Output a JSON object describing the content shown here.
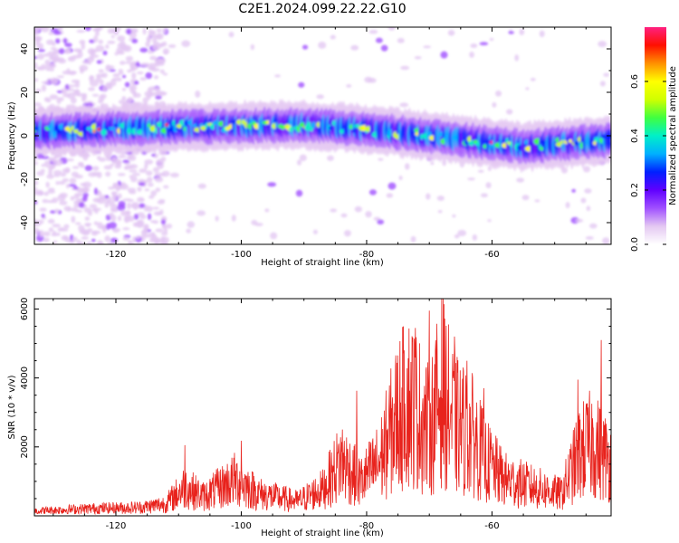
{
  "page_title": "C2E1.2024.099.22.22.G10",
  "chart_data": [
    {
      "type": "heatmap",
      "name": "spectrogram",
      "xlabel": "Height of straight line (km)",
      "ylabel": "Frequency (Hz)",
      "xlim": [
        -133,
        -41
      ],
      "ylim": [
        -50,
        50
      ],
      "x_ticks": [
        -120,
        -100,
        -80,
        -60
      ],
      "y_ticks": [
        -40,
        -20,
        0,
        20,
        40
      ],
      "band_center": [
        [
          -133,
          2
        ],
        [
          -110,
          4
        ],
        [
          -90,
          5
        ],
        [
          -80,
          3
        ],
        [
          -70,
          0
        ],
        [
          -55,
          -5
        ],
        [
          -41,
          -2
        ]
      ],
      "band_halfwidth_hz": 7,
      "peak_amplitude": 0.78,
      "noise_region_x": [
        -133,
        -112
      ],
      "colorbar": {
        "label": "Normalized spectral amplitude",
        "range": [
          0.0,
          0.8
        ],
        "ticks": [
          0.0,
          0.2,
          0.4,
          0.6
        ],
        "colors": [
          "#ffffff",
          "#e4c8f2",
          "#a050ff",
          "#6000ff",
          "#0020ff",
          "#00b0ff",
          "#00f0c8",
          "#40ff40",
          "#d0ff00",
          "#ffff00",
          "#ff9000",
          "#ff1000",
          "#ff2080"
        ]
      }
    },
    {
      "type": "line",
      "name": "snr",
      "xlabel": "Height of straight line (km)",
      "ylabel": "SNR (10 * v/v)",
      "xlim": [
        -133,
        -41
      ],
      "ylim": [
        0,
        6300
      ],
      "x_ticks": [
        -120,
        -100,
        -80,
        -60
      ],
      "y_ticks": [
        2000,
        4000,
        6000
      ],
      "color": "#e8221c",
      "envelope": [
        [
          -133,
          200
        ],
        [
          -124,
          300
        ],
        [
          -116,
          350
        ],
        [
          -112,
          500
        ],
        [
          -109,
          1200
        ],
        [
          -106,
          800
        ],
        [
          -101,
          1500
        ],
        [
          -97,
          900
        ],
        [
          -91,
          600
        ],
        [
          -87,
          1100
        ],
        [
          -84,
          2300
        ],
        [
          -81,
          1400
        ],
        [
          -78,
          2200
        ],
        [
          -75,
          4200
        ],
        [
          -73,
          4800
        ],
        [
          -70,
          3500
        ],
        [
          -68,
          5200
        ],
        [
          -66,
          3800
        ],
        [
          -63,
          3300
        ],
        [
          -61,
          2300
        ],
        [
          -58,
          1500
        ],
        [
          -52,
          1100
        ],
        [
          -49,
          900
        ],
        [
          -46,
          2600
        ],
        [
          -44,
          3000
        ],
        [
          -41,
          2200
        ]
      ],
      "spikes": [
        [
          -109,
          2050
        ],
        [
          -100,
          2180
        ],
        [
          -81.6,
          3630
        ],
        [
          -74,
          4800
        ],
        [
          -72.2,
          5450
        ],
        [
          -70,
          5950
        ],
        [
          -67.8,
          6300
        ],
        [
          -66,
          5200
        ],
        [
          -64,
          4500
        ],
        [
          -61.3,
          3700
        ],
        [
          -46.3,
          3950
        ],
        [
          -42.6,
          5100
        ]
      ]
    }
  ]
}
